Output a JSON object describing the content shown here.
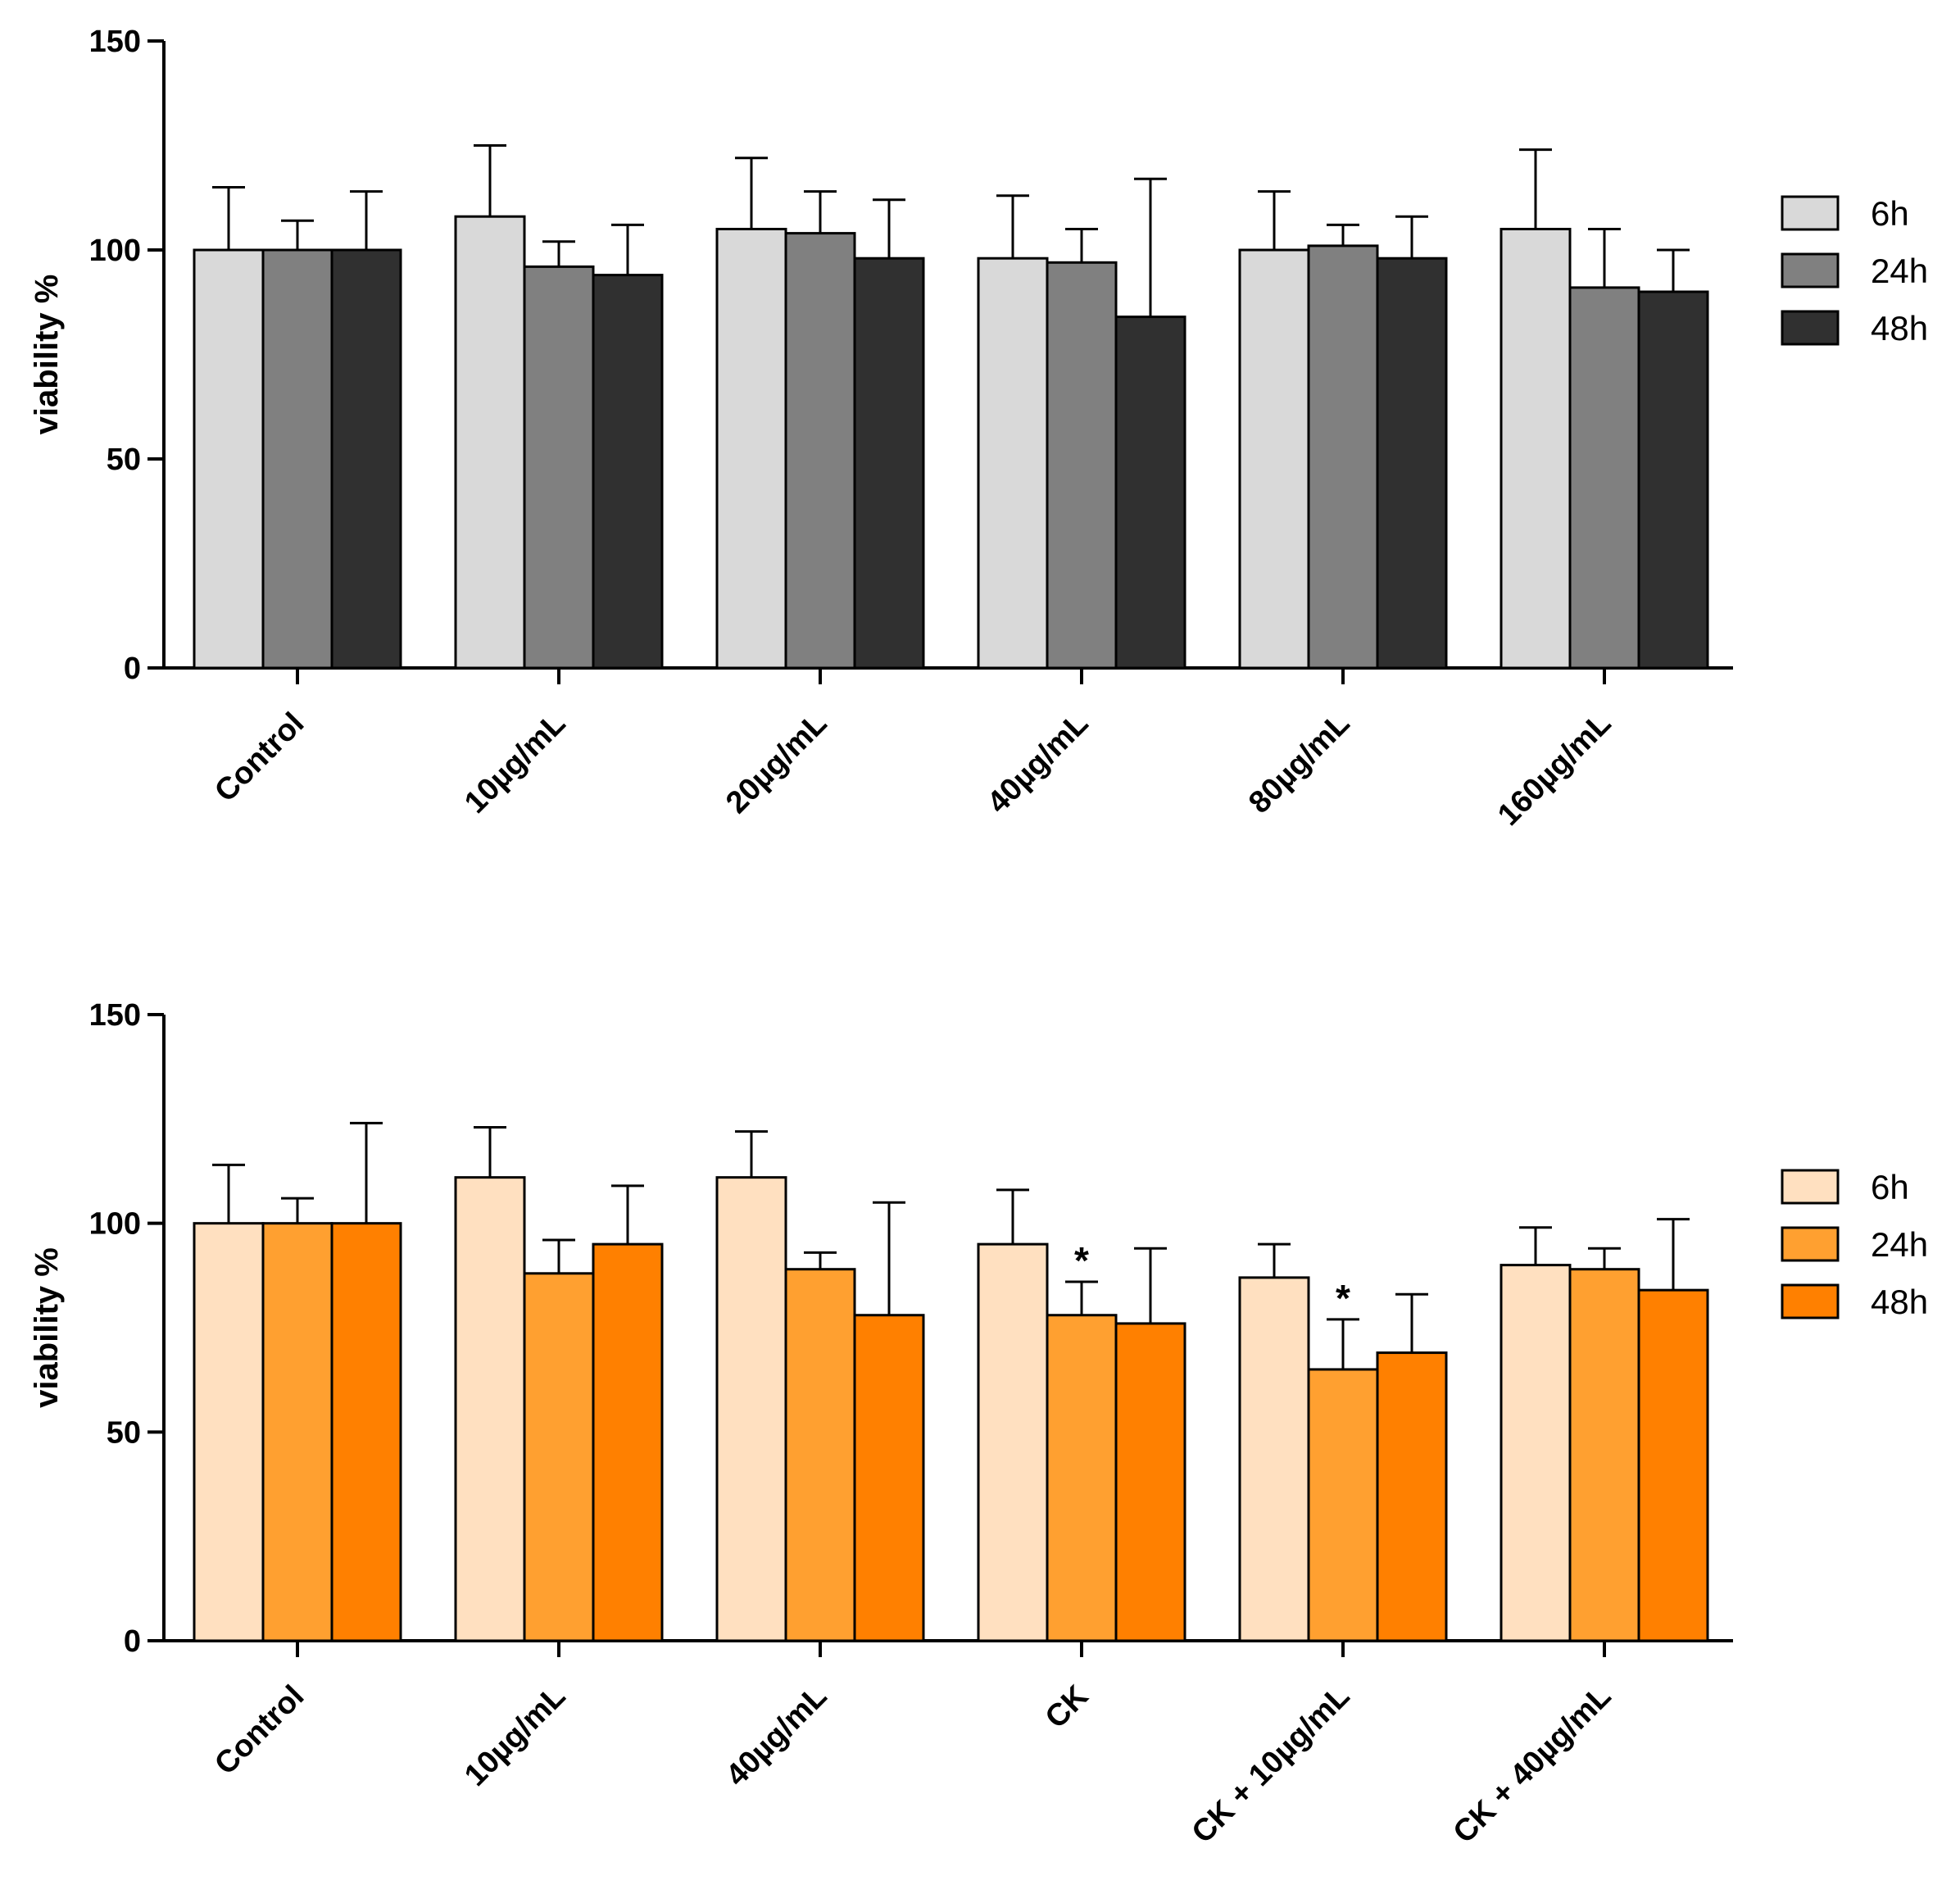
{
  "chart_data": [
    {
      "type": "bar",
      "title": "",
      "xlabel": "",
      "ylabel": "viability %",
      "ylim": [
        0,
        150
      ],
      "yticks": [
        0,
        50,
        100,
        150
      ],
      "grid": false,
      "legend_position": "right",
      "categories": [
        "Control",
        "10µg/mL",
        "20µg/mL",
        "40µg/mL",
        "80µg/mL",
        "160µg/mL"
      ],
      "series": [
        {
          "name": "6h",
          "color": "#d9d9d9",
          "values": [
            100,
            108,
            105,
            98,
            100,
            105
          ],
          "errors": [
            15,
            17,
            17,
            15,
            14,
            19
          ]
        },
        {
          "name": "24h",
          "color": "#808080",
          "values": [
            100,
            96,
            104,
            97,
            101,
            91
          ],
          "errors": [
            7,
            6,
            10,
            8,
            5,
            14
          ]
        },
        {
          "name": "48h",
          "color": "#303030",
          "values": [
            100,
            94,
            98,
            84,
            98,
            90
          ],
          "errors": [
            14,
            12,
            14,
            33,
            10,
            10
          ]
        }
      ],
      "annotations": []
    },
    {
      "type": "bar",
      "title": "",
      "xlabel": "",
      "ylabel": "viability %",
      "ylim": [
        0,
        150
      ],
      "yticks": [
        0,
        50,
        100,
        150
      ],
      "grid": false,
      "legend_position": "right",
      "categories": [
        "Control",
        "10µg/mL",
        "40µg/mL",
        "CK",
        "CK + 10µg/mL",
        "CK + 40µg/mL"
      ],
      "series": [
        {
          "name": "6h",
          "color": "#ffe0c0",
          "values": [
            100,
            111,
            111,
            95,
            87,
            90
          ],
          "errors": [
            14,
            12,
            11,
            13,
            8,
            9
          ]
        },
        {
          "name": "24h",
          "color": "#ffa030",
          "values": [
            100,
            88,
            89,
            78,
            65,
            89
          ],
          "errors": [
            6,
            8,
            4,
            8,
            12,
            5
          ]
        },
        {
          "name": "48h",
          "color": "#ff8000",
          "values": [
            100,
            95,
            78,
            76,
            69,
            84
          ],
          "errors": [
            24,
            14,
            27,
            18,
            14,
            17
          ]
        }
      ],
      "annotations": [
        {
          "text": "*",
          "category": "CK",
          "series": "24h"
        },
        {
          "text": "*",
          "category": "CK + 10µg/mL",
          "series": "24h"
        }
      ]
    }
  ]
}
